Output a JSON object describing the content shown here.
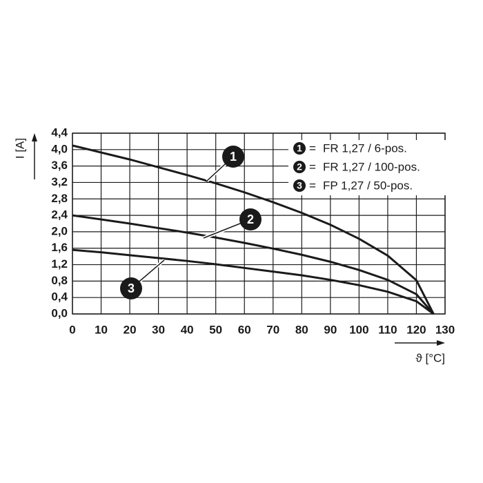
{
  "chart_data": {
    "type": "line",
    "x_label": "ϑ [°C]",
    "y_label": "I [A]",
    "x": [
      0,
      10,
      20,
      30,
      40,
      50,
      60,
      70,
      80,
      90,
      100,
      110,
      120,
      126
    ],
    "legend_separator": "=",
    "series": [
      {
        "badge": "1",
        "name": "FR 1,27 / 6-pos.",
        "color": "#1a1a1a",
        "values": [
          4.1,
          3.93,
          3.76,
          3.57,
          3.38,
          3.18,
          2.96,
          2.72,
          2.46,
          2.17,
          1.83,
          1.42,
          0.82,
          0
        ]
      },
      {
        "badge": "2",
        "name": "FR 1,27 / 100-pos.",
        "color": "#1a1a1a",
        "values": [
          2.4,
          2.3,
          2.2,
          2.09,
          1.98,
          1.86,
          1.73,
          1.59,
          1.44,
          1.27,
          1.07,
          0.83,
          0.48,
          0
        ]
      },
      {
        "badge": "3",
        "name": "FP 1,27 / 50-pos.",
        "color": "#1a1a1a",
        "values": [
          1.56,
          1.5,
          1.43,
          1.36,
          1.29,
          1.21,
          1.12,
          1.03,
          0.94,
          0.83,
          0.7,
          0.54,
          0.31,
          0
        ]
      }
    ],
    "xlim": [
      0,
      130
    ],
    "xticks": [
      0,
      10,
      20,
      30,
      40,
      50,
      60,
      70,
      80,
      90,
      100,
      110,
      120,
      130
    ],
    "ylim": [
      0,
      4.4
    ],
    "yticks": [
      {
        "value": 0,
        "label": "0,0"
      },
      {
        "value": 0.4,
        "label": "0,4"
      },
      {
        "value": 0.8,
        "label": "0,8"
      },
      {
        "value": 1.2,
        "label": "1,2"
      },
      {
        "value": 1.6,
        "label": "1,6"
      },
      {
        "value": 2.0,
        "label": "2,0"
      },
      {
        "value": 2.4,
        "label": "2,4"
      },
      {
        "value": 2.8,
        "label": "2,8"
      },
      {
        "value": 3.2,
        "label": "3,2"
      },
      {
        "value": 3.6,
        "label": "3,6"
      },
      {
        "value": 4.0,
        "label": "4,0"
      },
      {
        "value": 4.4,
        "label": "4,4"
      }
    ],
    "grid": true,
    "legend": "upper right"
  }
}
